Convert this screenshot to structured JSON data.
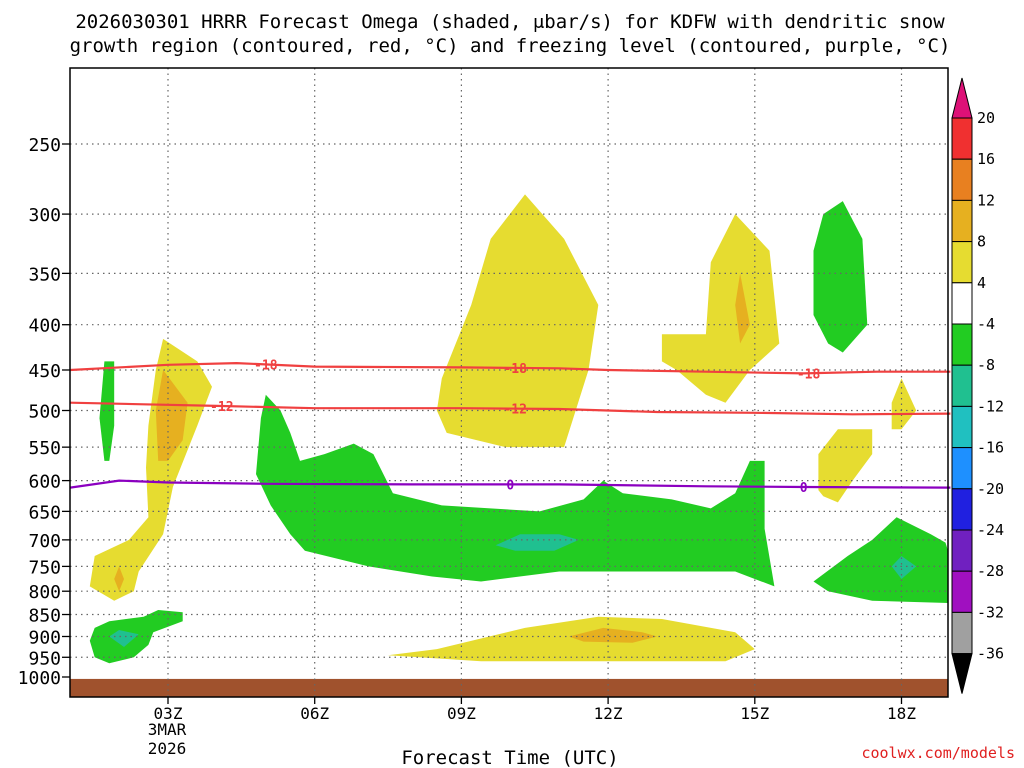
{
  "chart_data": {
    "type": "contour",
    "title_line1": "2026030301 HRRR Forecast Omega (shaded, μbar/s) for KDFW with dendritic snow",
    "title_line2": "growth region (contoured, red, °C) and freezing level (contoured, purple, °C)",
    "xlabel": "Forecast Time (UTC)",
    "credit": "coolwx.com/models",
    "x_ticks": [
      {
        "hour": 3,
        "label": "03Z"
      },
      {
        "hour": 6,
        "label": "06Z"
      },
      {
        "hour": 9,
        "label": "09Z"
      },
      {
        "hour": 12,
        "label": "12Z"
      },
      {
        "hour": 15,
        "label": "15Z"
      },
      {
        "hour": 18,
        "label": "18Z"
      }
    ],
    "date_label_line1": "3MAR",
    "date_label_line2": "2026",
    "xlim": [
      1,
      19
    ],
    "y_ticks": [
      {
        "p": 250,
        "label": "250"
      },
      {
        "p": 300,
        "label": "300"
      },
      {
        "p": 350,
        "label": "350"
      },
      {
        "p": 400,
        "label": "400"
      },
      {
        "p": 450,
        "label": "450"
      },
      {
        "p": 500,
        "label": "500"
      },
      {
        "p": 550,
        "label": "550"
      },
      {
        "p": 600,
        "label": "600"
      },
      {
        "p": 650,
        "label": "650"
      },
      {
        "p": 700,
        "label": "700"
      },
      {
        "p": 750,
        "label": "750"
      },
      {
        "p": 800,
        "label": "800"
      },
      {
        "p": 850,
        "label": "850"
      },
      {
        "p": 900,
        "label": "900"
      },
      {
        "p": 950,
        "label": "950"
      },
      {
        "p": 1000,
        "label": "1000"
      }
    ],
    "ylim": [
      1000,
      200
    ],
    "y_scale": "log-pressure",
    "grid": true,
    "colorbar": {
      "labels": [
        "20",
        "16",
        "12",
        "8",
        "4",
        "-4",
        "-8",
        "-12",
        "-16",
        "-20",
        "-24",
        "-28",
        "-32",
        "-36"
      ],
      "colors": [
        "#dd1177",
        "#f03030",
        "#e88020",
        "#e6b020",
        "#e6dc30",
        "#ffffff",
        "#22cc22",
        "#20c090",
        "#20c0c0",
        "#1e90ff",
        "#2020e0",
        "#7020c0",
        "#a010c0",
        "#a0a0a0",
        "#000000"
      ]
    },
    "omega_regions": [
      {
        "color": "#e6dc30",
        "points": [
          [
            1.9,
            820
          ],
          [
            1.4,
            790
          ],
          [
            1.5,
            730
          ],
          [
            2.2,
            700
          ],
          [
            2.6,
            660
          ],
          [
            2.55,
            580
          ],
          [
            2.6,
            520
          ],
          [
            2.75,
            450
          ],
          [
            2.9,
            415
          ],
          [
            3.6,
            440
          ],
          [
            3.9,
            470
          ],
          [
            3.6,
            520
          ],
          [
            3.1,
            610
          ],
          [
            2.9,
            690
          ],
          [
            2.4,
            760
          ],
          [
            2.3,
            800
          ]
        ]
      },
      {
        "color": "#e6b020",
        "points": [
          [
            2.8,
            570
          ],
          [
            2.75,
            500
          ],
          [
            2.9,
            450
          ],
          [
            3.4,
            490
          ],
          [
            3.3,
            540
          ],
          [
            3.0,
            570
          ]
        ]
      },
      {
        "color": "#e6b020",
        "points": [
          [
            2.0,
            800
          ],
          [
            1.9,
            775
          ],
          [
            2.0,
            750
          ],
          [
            2.1,
            775
          ]
        ]
      },
      {
        "color": "#e6dc30",
        "points": [
          [
            8.5,
            500
          ],
          [
            8.6,
            460
          ],
          [
            9.2,
            380
          ],
          [
            9.6,
            320
          ],
          [
            10.3,
            285
          ],
          [
            11.1,
            320
          ],
          [
            11.8,
            380
          ],
          [
            11.6,
            450
          ],
          [
            11.1,
            550
          ],
          [
            9.9,
            550
          ],
          [
            8.7,
            530
          ]
        ]
      },
      {
        "color": "#e6dc30",
        "points": [
          [
            13.1,
            410
          ],
          [
            14.0,
            410
          ],
          [
            14.1,
            340
          ],
          [
            14.6,
            300
          ],
          [
            15.3,
            330
          ],
          [
            15.5,
            420
          ],
          [
            14.9,
            450
          ],
          [
            14.4,
            490
          ],
          [
            14.0,
            480
          ],
          [
            13.4,
            450
          ],
          [
            13.1,
            440
          ]
        ]
      },
      {
        "color": "#e6b020",
        "points": [
          [
            14.7,
            350
          ],
          [
            14.9,
            400
          ],
          [
            14.7,
            420
          ],
          [
            14.6,
            380
          ]
        ]
      },
      {
        "color": "#e6dc30",
        "points": [
          [
            16.3,
            615
          ],
          [
            16.3,
            560
          ],
          [
            16.7,
            525
          ],
          [
            17.4,
            525
          ],
          [
            17.4,
            560
          ],
          [
            17.0,
            600
          ],
          [
            16.7,
            635
          ],
          [
            16.4,
            625
          ]
        ]
      },
      {
        "color": "#e6dc30",
        "points": [
          [
            17.8,
            525
          ],
          [
            17.8,
            490
          ],
          [
            18.0,
            460
          ],
          [
            18.3,
            500
          ],
          [
            18.0,
            525
          ]
        ]
      },
      {
        "color": "#e6dc30",
        "points": [
          [
            7.5,
            945
          ],
          [
            8.5,
            930
          ],
          [
            10.3,
            880
          ],
          [
            11.8,
            855
          ],
          [
            13.1,
            860
          ],
          [
            14.6,
            890
          ],
          [
            15.0,
            930
          ],
          [
            14.4,
            960
          ],
          [
            12.4,
            960
          ],
          [
            9.4,
            960
          ]
        ]
      },
      {
        "color": "#e6b020",
        "points": [
          [
            11.2,
            900
          ],
          [
            11.9,
            880
          ],
          [
            12.7,
            890
          ],
          [
            13.0,
            900
          ],
          [
            12.5,
            915
          ],
          [
            11.5,
            912
          ]
        ]
      },
      {
        "color": "#22cc22",
        "points": [
          [
            1.7,
            570
          ],
          [
            1.6,
            510
          ],
          [
            1.7,
            440
          ],
          [
            1.9,
            440
          ],
          [
            1.9,
            520
          ],
          [
            1.8,
            570
          ]
        ]
      },
      {
        "color": "#22cc22",
        "points": [
          [
            4.8,
            590
          ],
          [
            4.9,
            510
          ],
          [
            5.0,
            480
          ],
          [
            5.3,
            500
          ],
          [
            5.5,
            530
          ],
          [
            5.7,
            570
          ],
          [
            6.2,
            560
          ],
          [
            6.8,
            545
          ],
          [
            7.2,
            560
          ],
          [
            7.6,
            620
          ],
          [
            8.6,
            640
          ],
          [
            10.6,
            650
          ],
          [
            11.5,
            630
          ],
          [
            11.9,
            600
          ],
          [
            12.3,
            620
          ],
          [
            13.3,
            630
          ],
          [
            14.1,
            645
          ],
          [
            14.6,
            620
          ],
          [
            14.9,
            570
          ],
          [
            15.2,
            570
          ],
          [
            15.2,
            680
          ],
          [
            15.4,
            790
          ],
          [
            14.6,
            760
          ],
          [
            12.6,
            760
          ],
          [
            11.0,
            760
          ],
          [
            9.4,
            780
          ],
          [
            8.4,
            770
          ],
          [
            7.1,
            750
          ],
          [
            5.8,
            720
          ],
          [
            5.5,
            690
          ],
          [
            5.1,
            640
          ]
        ]
      },
      {
        "color": "#20c090",
        "points": [
          [
            9.7,
            710
          ],
          [
            10.2,
            690
          ],
          [
            11.0,
            690
          ],
          [
            11.4,
            700
          ],
          [
            10.9,
            720
          ],
          [
            10.1,
            720
          ]
        ]
      },
      {
        "color": "#22cc22",
        "points": [
          [
            16.2,
            390
          ],
          [
            16.2,
            330
          ],
          [
            16.4,
            300
          ],
          [
            16.8,
            290
          ],
          [
            17.2,
            320
          ],
          [
            17.3,
            400
          ],
          [
            16.8,
            430
          ],
          [
            16.5,
            420
          ]
        ]
      },
      {
        "color": "#22cc22",
        "points": [
          [
            16.2,
            780
          ],
          [
            16.9,
            730
          ],
          [
            17.4,
            700
          ],
          [
            17.9,
            660
          ],
          [
            18.6,
            690
          ],
          [
            18.9,
            705
          ],
          [
            19.0,
            720
          ],
          [
            19.0,
            825
          ],
          [
            17.4,
            820
          ],
          [
            16.5,
            800
          ]
        ]
      },
      {
        "color": "#20c090",
        "points": [
          [
            17.8,
            750
          ],
          [
            18.0,
            730
          ],
          [
            18.3,
            750
          ],
          [
            18.0,
            775
          ]
        ]
      },
      {
        "color": "#22cc22",
        "points": [
          [
            1.4,
            910
          ],
          [
            1.5,
            880
          ],
          [
            1.8,
            865
          ],
          [
            2.5,
            855
          ],
          [
            2.8,
            840
          ],
          [
            3.3,
            845
          ],
          [
            3.3,
            865
          ],
          [
            2.7,
            890
          ],
          [
            2.6,
            920
          ],
          [
            2.3,
            950
          ],
          [
            1.8,
            965
          ],
          [
            1.5,
            950
          ]
        ]
      },
      {
        "color": "#20c090",
        "points": [
          [
            1.8,
            900
          ],
          [
            2.0,
            885
          ],
          [
            2.4,
            895
          ],
          [
            2.1,
            925
          ]
        ]
      }
    ],
    "surface_band": {
      "color": "#a0522d",
      "from_p": 1005,
      "to_p": 1050
    },
    "contours": [
      {
        "name": "-18",
        "color": "#f04040",
        "label_color": "#f04040",
        "points": [
          [
            1,
            450
          ],
          [
            3,
            444
          ],
          [
            4.4,
            442
          ],
          [
            6,
            446
          ],
          [
            9,
            447
          ],
          [
            11,
            448
          ],
          [
            12,
            450
          ],
          [
            14,
            452
          ],
          [
            16,
            454
          ],
          [
            17.5,
            452
          ],
          [
            19,
            452
          ]
        ],
        "labels": [
          {
            "x": 5.0,
            "text": "-18"
          },
          {
            "x": 10.1,
            "text": "-18"
          },
          {
            "x": 16.1,
            "text": "-18"
          }
        ]
      },
      {
        "name": "-12",
        "color": "#f04040",
        "label_color": "#f04040",
        "points": [
          [
            1,
            490
          ],
          [
            2.5,
            492
          ],
          [
            4,
            494
          ],
          [
            6,
            497
          ],
          [
            9,
            497
          ],
          [
            11,
            498
          ],
          [
            13,
            502
          ],
          [
            15,
            503
          ],
          [
            17,
            505
          ],
          [
            19,
            504
          ]
        ],
        "labels": [
          {
            "x": 4.1,
            "text": "-12"
          },
          {
            "x": 10.1,
            "text": "-12"
          }
        ]
      },
      {
        "name": "0",
        "color": "#8b00c0",
        "label_color": "#8b00c0",
        "points": [
          [
            1,
            611
          ],
          [
            2,
            600
          ],
          [
            3,
            603
          ],
          [
            5,
            605
          ],
          [
            8,
            606
          ],
          [
            11,
            606
          ],
          [
            14,
            609
          ],
          [
            16,
            610
          ],
          [
            19,
            611
          ]
        ],
        "labels": [
          {
            "x": 10.0,
            "text": "0"
          },
          {
            "x": 16.0,
            "text": "0"
          }
        ]
      }
    ]
  }
}
